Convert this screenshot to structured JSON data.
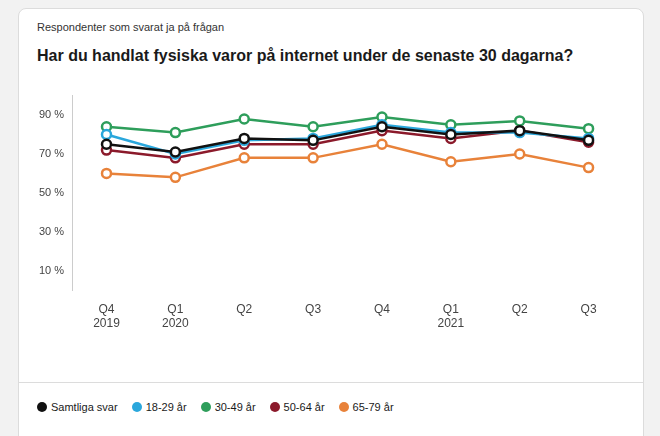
{
  "chart_data": {
    "type": "line",
    "subtitle": "Respondenter som svarat ja på frågan",
    "title": "Har du handlat fysiska varor på internet under de senaste 30 dagarna?",
    "categories": [
      [
        "Q4",
        "2019"
      ],
      [
        "Q1",
        "2020"
      ],
      "Q2",
      "Q3",
      "Q4",
      [
        "Q1",
        "2021"
      ],
      "Q2",
      "Q3"
    ],
    "series": [
      {
        "name": "Samtliga svar",
        "color": "#111111",
        "values": [
          75,
          71,
          78,
          77,
          84,
          80,
          82,
          77
        ]
      },
      {
        "name": "18-29 år",
        "color": "#2aa7dc",
        "values": [
          80,
          70,
          77,
          78,
          85,
          81,
          81,
          78
        ]
      },
      {
        "name": "30-49 år",
        "color": "#2e9e5b",
        "values": [
          84,
          81,
          88,
          84,
          89,
          85,
          87,
          83
        ]
      },
      {
        "name": "50-64 år",
        "color": "#8b1a2b",
        "values": [
          72,
          68,
          75,
          75,
          82,
          78,
          82,
          76
        ]
      },
      {
        "name": "65-79 år",
        "color": "#e8823a",
        "values": [
          60,
          58,
          68,
          68,
          75,
          66,
          70,
          63
        ]
      }
    ],
    "ylim": [
      0,
      100
    ],
    "yticks": [
      {
        "value": 10,
        "label": "10 %"
      },
      {
        "value": 30,
        "label": "30 %"
      },
      {
        "value": 50,
        "label": "50 %"
      },
      {
        "value": 70,
        "label": "70 %"
      },
      {
        "value": 90,
        "label": "90 %"
      }
    ],
    "grid": false,
    "legend": "bottom",
    "marker": "circle",
    "line_style": "solid"
  }
}
